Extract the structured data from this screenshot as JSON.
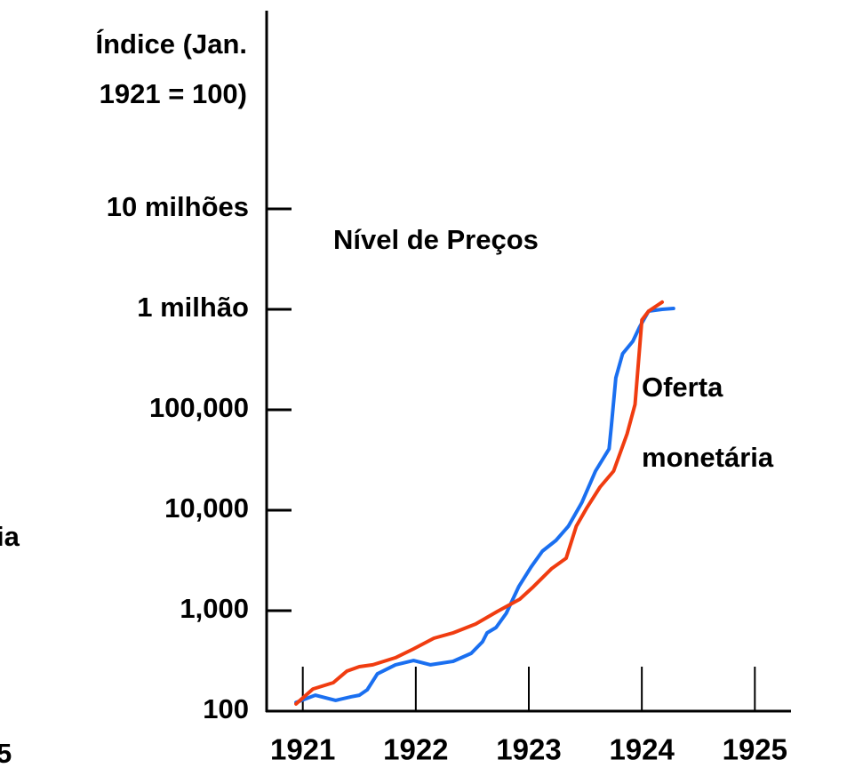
{
  "chart_data": {
    "type": "line",
    "ylabel": [
      "Índice (Jan.",
      "1921 = 100)"
    ],
    "annotations": [
      "Nível de Preços",
      "Oferta",
      "monetária",
      "ia",
      "5"
    ],
    "log_y": true,
    "xlim": [
      1920.68,
      1925.32
    ],
    "ylim": [
      100,
      1000000000
    ],
    "xticks": [
      1921,
      1922,
      1923,
      1924,
      1925
    ],
    "yticks": [
      100,
      {
        "value": 1000,
        "label": "1,000"
      },
      {
        "value": 10000,
        "label": "10,000"
      },
      {
        "value": 100000,
        "label": "100,000"
      },
      {
        "value": 1000000,
        "label": "1 milhão"
      },
      {
        "value": 10000000,
        "label": "10 milhões"
      }
    ],
    "series": [
      {
        "color": "#1a6ff0",
        "x": [
          1920.94,
          1921.11,
          1921.29,
          1921.43,
          1921.5,
          1921.57,
          1921.66,
          1921.82,
          1921.98,
          1922.13,
          1922.33,
          1922.49,
          1922.59,
          1922.63,
          1922.71,
          1922.8,
          1922.91,
          1923.02,
          1923.12,
          1923.24,
          1923.35,
          1923.47,
          1923.59,
          1923.71,
          1923.73,
          1923.77,
          1923.83,
          1923.92,
          1923.98,
          1924.06,
          1924.18,
          1924.28
        ],
        "values": [
          122,
          144,
          128,
          139,
          144,
          163,
          235,
          289,
          319,
          289,
          313,
          376,
          490,
          601,
          679,
          940,
          1730,
          2720,
          3920,
          5000,
          6930,
          12000,
          24500,
          40800,
          67900,
          208000,
          361000,
          480000,
          665000,
          960000,
          1000000,
          1020000
        ]
      },
      {
        "color": "#f03c10",
        "x": [
          1920.94,
          1921.09,
          1921.27,
          1921.39,
          1921.5,
          1921.62,
          1921.82,
          1921.98,
          1922.16,
          1922.33,
          1922.53,
          1922.72,
          1922.92,
          1923.04,
          1923.2,
          1923.33,
          1923.42,
          1923.51,
          1923.63,
          1923.75,
          1923.87,
          1923.94,
          1924.0,
          1924.06,
          1924.18
        ],
        "values": [
          118,
          166,
          192,
          250,
          277,
          289,
          340,
          416,
          532,
          601,
          736,
          980,
          1300,
          1730,
          2610,
          3330,
          6930,
          10400,
          17000,
          24500,
          57700,
          113000,
          783000,
          960000,
          1180000
        ]
      }
    ]
  }
}
